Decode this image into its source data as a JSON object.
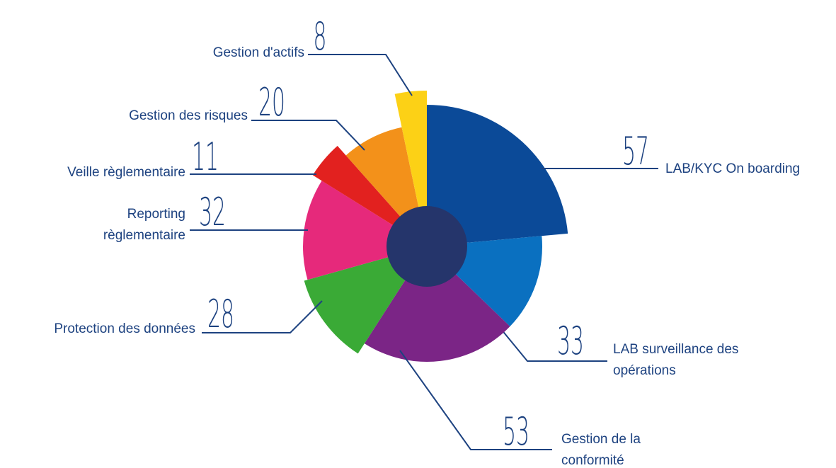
{
  "chart_data": {
    "type": "pie",
    "categories": [
      "LAB/KYC On boarding",
      "LAB surveillance des opérations",
      "Gestion de la conformité",
      "Protection des données",
      "Reporting règlementaire",
      "Veille règlementaire",
      "Gestion des risques",
      "Gestion d'actifs"
    ],
    "values": [
      57,
      33,
      53,
      28,
      32,
      11,
      20,
      8
    ],
    "colors": [
      "#0b4a98",
      "#0a70c0",
      "#7b2586",
      "#3aaa36",
      "#e6297b",
      "#e2211f",
      "#f3911a",
      "#fcd116"
    ]
  }
}
